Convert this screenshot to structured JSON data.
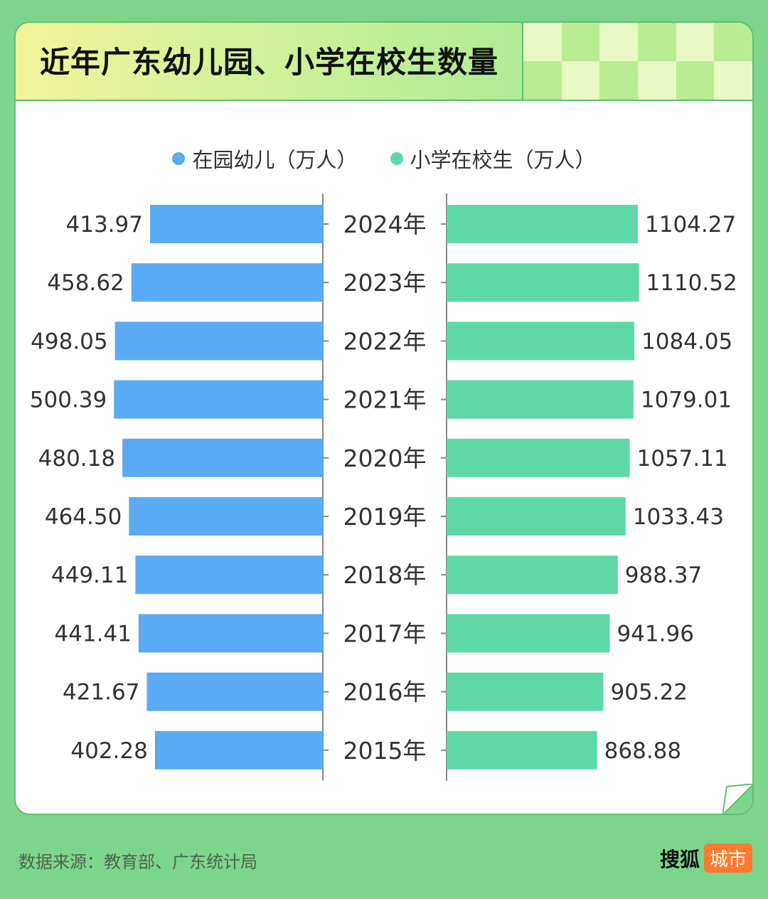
{
  "title": "近年广东幼儿园、小学在校生数量",
  "source": "数据来源：教育部、广东统计局",
  "brand": {
    "name": "搜狐",
    "tag": "城市"
  },
  "colors": {
    "kindergarten": "#5aabf3",
    "primary": "#5fd8a7",
    "background": "#7dd58c"
  },
  "chart_data": {
    "type": "bar",
    "orientation": "horizontal-butterfly",
    "categories": [
      "2024年",
      "2023年",
      "2022年",
      "2021年",
      "2020年",
      "2019年",
      "2018年",
      "2017年",
      "2016年",
      "2015年"
    ],
    "series": [
      {
        "name": "在园幼儿（万人）",
        "values": [
          413.97,
          458.62,
          498.05,
          500.39,
          480.18,
          464.5,
          449.11,
          441.41,
          421.67,
          402.28
        ],
        "labels": [
          "413.97",
          "458.62",
          "498.05",
          "500.39",
          "480.18",
          "464.50",
          "449.11",
          "441.41",
          "421.67",
          "402.28"
        ]
      },
      {
        "name": "小学在校生（万人）",
        "values": [
          1104.27,
          1110.52,
          1084.05,
          1079.01,
          1057.11,
          1033.43,
          988.37,
          941.96,
          905.22,
          868.88
        ],
        "labels": [
          "1104.27",
          "1110.52",
          "1084.05",
          "1079.01",
          "1057.11",
          "1033.43",
          "988.37",
          "941.96",
          "905.22",
          "868.88"
        ]
      }
    ],
    "legend_position": "top-center"
  }
}
